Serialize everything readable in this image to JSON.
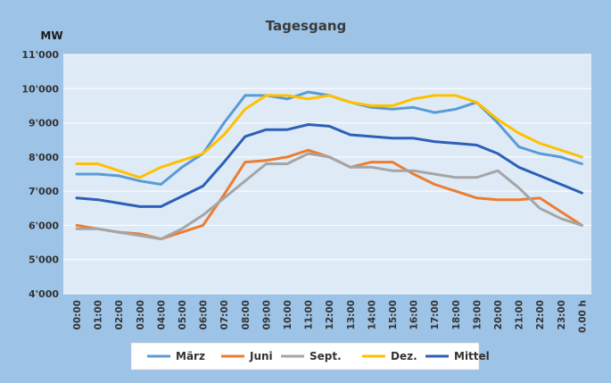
{
  "chart_data": {
    "type": "line",
    "title": "Tagesgang",
    "ylabel": "MW",
    "ylim": [
      4000,
      11000
    ],
    "yticks": [
      4000,
      5000,
      6000,
      7000,
      8000,
      9000,
      10000,
      11000
    ],
    "ytick_labels": [
      "4'000",
      "5'000",
      "6'000",
      "7'000",
      "8'000",
      "9'000",
      "10'000",
      "11'000"
    ],
    "categories": [
      "00:00",
      "01:00",
      "02:00",
      "03:00",
      "04:00",
      "05:00",
      "06:00",
      "07:00",
      "08:00",
      "09:00",
      "10:00",
      "11:00",
      "12:00",
      "13:00",
      "14:00",
      "15:00",
      "16:00",
      "17:00",
      "18:00",
      "19:00",
      "20:00",
      "21:00",
      "22:00",
      "23:00",
      "0.00 h"
    ],
    "grid": true,
    "legend_position": "bottom",
    "colors": {
      "outer_background": "#9dc3e6",
      "plot_background": "#deebf7",
      "grid": "#ffffff"
    },
    "series": [
      {
        "name": "März",
        "color": "#5b9bd5",
        "values": [
          7500,
          7500,
          7450,
          7300,
          7200,
          7700,
          8100,
          9000,
          9800,
          9800,
          9700,
          9900,
          9800,
          9600,
          9450,
          9400,
          9450,
          9300,
          9400,
          9600,
          9000,
          8300,
          8100,
          8000,
          7800
        ]
      },
      {
        "name": "Juni",
        "color": "#ed7d31",
        "values": [
          6000,
          5900,
          5800,
          5750,
          5600,
          5800,
          6000,
          6900,
          7850,
          7900,
          8000,
          8200,
          8000,
          7700,
          7850,
          7850,
          7500,
          7200,
          7000,
          6800,
          6750,
          6750,
          6800,
          6400,
          6000
        ]
      },
      {
        "name": "Sept.",
        "color": "#a5a5a5",
        "values": [
          5900,
          5900,
          5800,
          5700,
          5600,
          5900,
          6300,
          6800,
          7300,
          7800,
          7800,
          8100,
          8000,
          7700,
          7700,
          7600,
          7600,
          7500,
          7400,
          7400,
          7600,
          7100,
          6500,
          6200,
          6000
        ]
      },
      {
        "name": "Dez.",
        "color": "#ffc000",
        "values": [
          7800,
          7800,
          7600,
          7400,
          7700,
          7900,
          8100,
          8650,
          9400,
          9800,
          9800,
          9700,
          9800,
          9600,
          9500,
          9500,
          9700,
          9800,
          9800,
          9600,
          9100,
          8700,
          8400,
          8200,
          8000
        ]
      },
      {
        "name": "Mittel",
        "color": "#2e5fb8",
        "values": [
          6800,
          6750,
          6650,
          6550,
          6550,
          6850,
          7150,
          7850,
          8600,
          8800,
          8800,
          8950,
          8900,
          8650,
          8600,
          8550,
          8550,
          8450,
          8400,
          8350,
          8100,
          7700,
          7450,
          7200,
          6950
        ]
      }
    ]
  }
}
